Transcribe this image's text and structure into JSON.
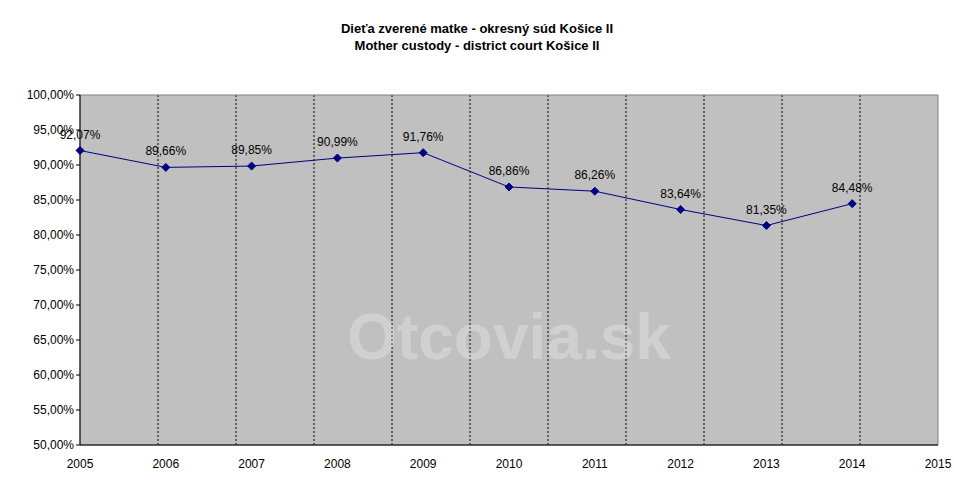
{
  "chart_data": {
    "type": "line",
    "title": "Dieťa zverené matke - okresný súd Košice II",
    "subtitle": "Mother custody - district court Košice II",
    "watermark": "Otcovia.sk",
    "categories": [
      "2005",
      "2006",
      "2007",
      "2008",
      "2009",
      "2010",
      "2011",
      "2012",
      "2013",
      "2014",
      "2015"
    ],
    "values": [
      92.07,
      89.66,
      89.85,
      90.99,
      91.76,
      86.86,
      86.26,
      83.64,
      81.35,
      84.48,
      null
    ],
    "value_labels": [
      "92,07%",
      "89,66%",
      "89,85%",
      "90,99%",
      "91,76%",
      "86,86%",
      "86,26%",
      "83,64%",
      "81,35%",
      "84,48%",
      null
    ],
    "data_labels": true,
    "color": "#000080",
    "marker": "diamond",
    "grid": true,
    "ylim": [
      50,
      100
    ],
    "yticks": [
      {
        "value": 50,
        "label": "50,00%"
      },
      {
        "value": 55,
        "label": "55,00%"
      },
      {
        "value": 60,
        "label": "60,00%"
      },
      {
        "value": 65,
        "label": "65,00%"
      },
      {
        "value": 70,
        "label": "70,00%"
      },
      {
        "value": 75,
        "label": "75,00%"
      },
      {
        "value": 80,
        "label": "80,00%"
      },
      {
        "value": 85,
        "label": "85,00%"
      },
      {
        "value": 90,
        "label": "90,00%"
      },
      {
        "value": 95,
        "label": "95,00%"
      },
      {
        "value": 100,
        "label": "100,00%"
      }
    ]
  }
}
